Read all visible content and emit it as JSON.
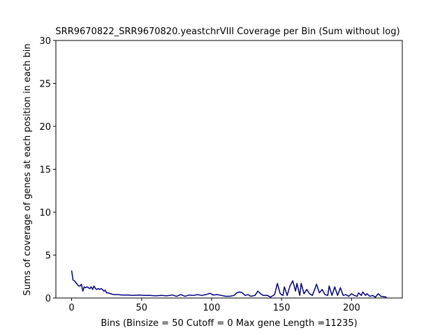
{
  "chart_data": {
    "type": "line",
    "title": "SRR9670822_SRR9670820.yeastchrVIII Coverage per Bin (Sum without log)",
    "x_label": "Bins  (Binsize = 50 Cutoff = 0 Max gene Length =11235)",
    "y_label": "Sums of coverage of genes at each position in each bin",
    "x": [
      0,
      1,
      2,
      3,
      4,
      5,
      6,
      7,
      8,
      9,
      10,
      11,
      12,
      13,
      14,
      15,
      16,
      17,
      18,
      19,
      20,
      21,
      22,
      23,
      24,
      25,
      26,
      28,
      30,
      33,
      36,
      40,
      44,
      48,
      52,
      56,
      60,
      64,
      68,
      72,
      75,
      78,
      81,
      84,
      87,
      90,
      93,
      96,
      99,
      101,
      104,
      107,
      110,
      113,
      116,
      118,
      120,
      122,
      124,
      126,
      128,
      131,
      133,
      135,
      137,
      140,
      142,
      145,
      147,
      149,
      151,
      152,
      154,
      156,
      158,
      160,
      161,
      163,
      164,
      166,
      168,
      170,
      172,
      175,
      177,
      179,
      181,
      183,
      184,
      186,
      188,
      190,
      192,
      194,
      196,
      198,
      200,
      202,
      204,
      205,
      207,
      208,
      210,
      211,
      213,
      215,
      217,
      219,
      221,
      223,
      225
    ],
    "series": [
      {
        "name": "coverage",
        "color": "#000080",
        "values": [
          3.2,
          2.1,
          2.0,
          1.8,
          1.6,
          1.4,
          1.4,
          1.6,
          0.8,
          1.3,
          1.2,
          1.3,
          1.2,
          1.1,
          1.3,
          1.0,
          1.4,
          1.1,
          1.0,
          1.1,
          1.0,
          1.1,
          1.0,
          0.8,
          0.9,
          0.6,
          0.6,
          0.5,
          0.4,
          0.4,
          0.35,
          0.35,
          0.3,
          0.35,
          0.3,
          0.3,
          0.25,
          0.3,
          0.25,
          0.35,
          0.2,
          0.4,
          0.2,
          0.35,
          0.3,
          0.4,
          0.3,
          0.4,
          0.55,
          0.35,
          0.4,
          0.3,
          0.2,
          0.2,
          0.3,
          0.6,
          0.7,
          0.6,
          0.3,
          0.4,
          0.2,
          0.3,
          0.8,
          0.5,
          0.3,
          0.3,
          0.1,
          0.4,
          1.7,
          0.5,
          0.3,
          1.3,
          0.3,
          1.4,
          2.0,
          0.8,
          1.7,
          0.3,
          1.7,
          0.5,
          1.0,
          0.5,
          0.3,
          1.6,
          0.6,
          1.0,
          0.4,
          0.3,
          1.4,
          0.3,
          1.3,
          0.3,
          1.2,
          0.3,
          0.4,
          0.2,
          0.5,
          0.3,
          0.2,
          0.6,
          0.3,
          0.7,
          0.3,
          0.5,
          0.2,
          0.3,
          0.1,
          0.5,
          0.2,
          0.15,
          0.1
        ]
      }
    ],
    "xlim": [
      -11.25,
      236.25
    ],
    "xticks": [
      0,
      50,
      100,
      150,
      200
    ],
    "ylim": [
      0,
      30
    ],
    "yticks": [
      0,
      5,
      10,
      15,
      20,
      25,
      30
    ]
  }
}
